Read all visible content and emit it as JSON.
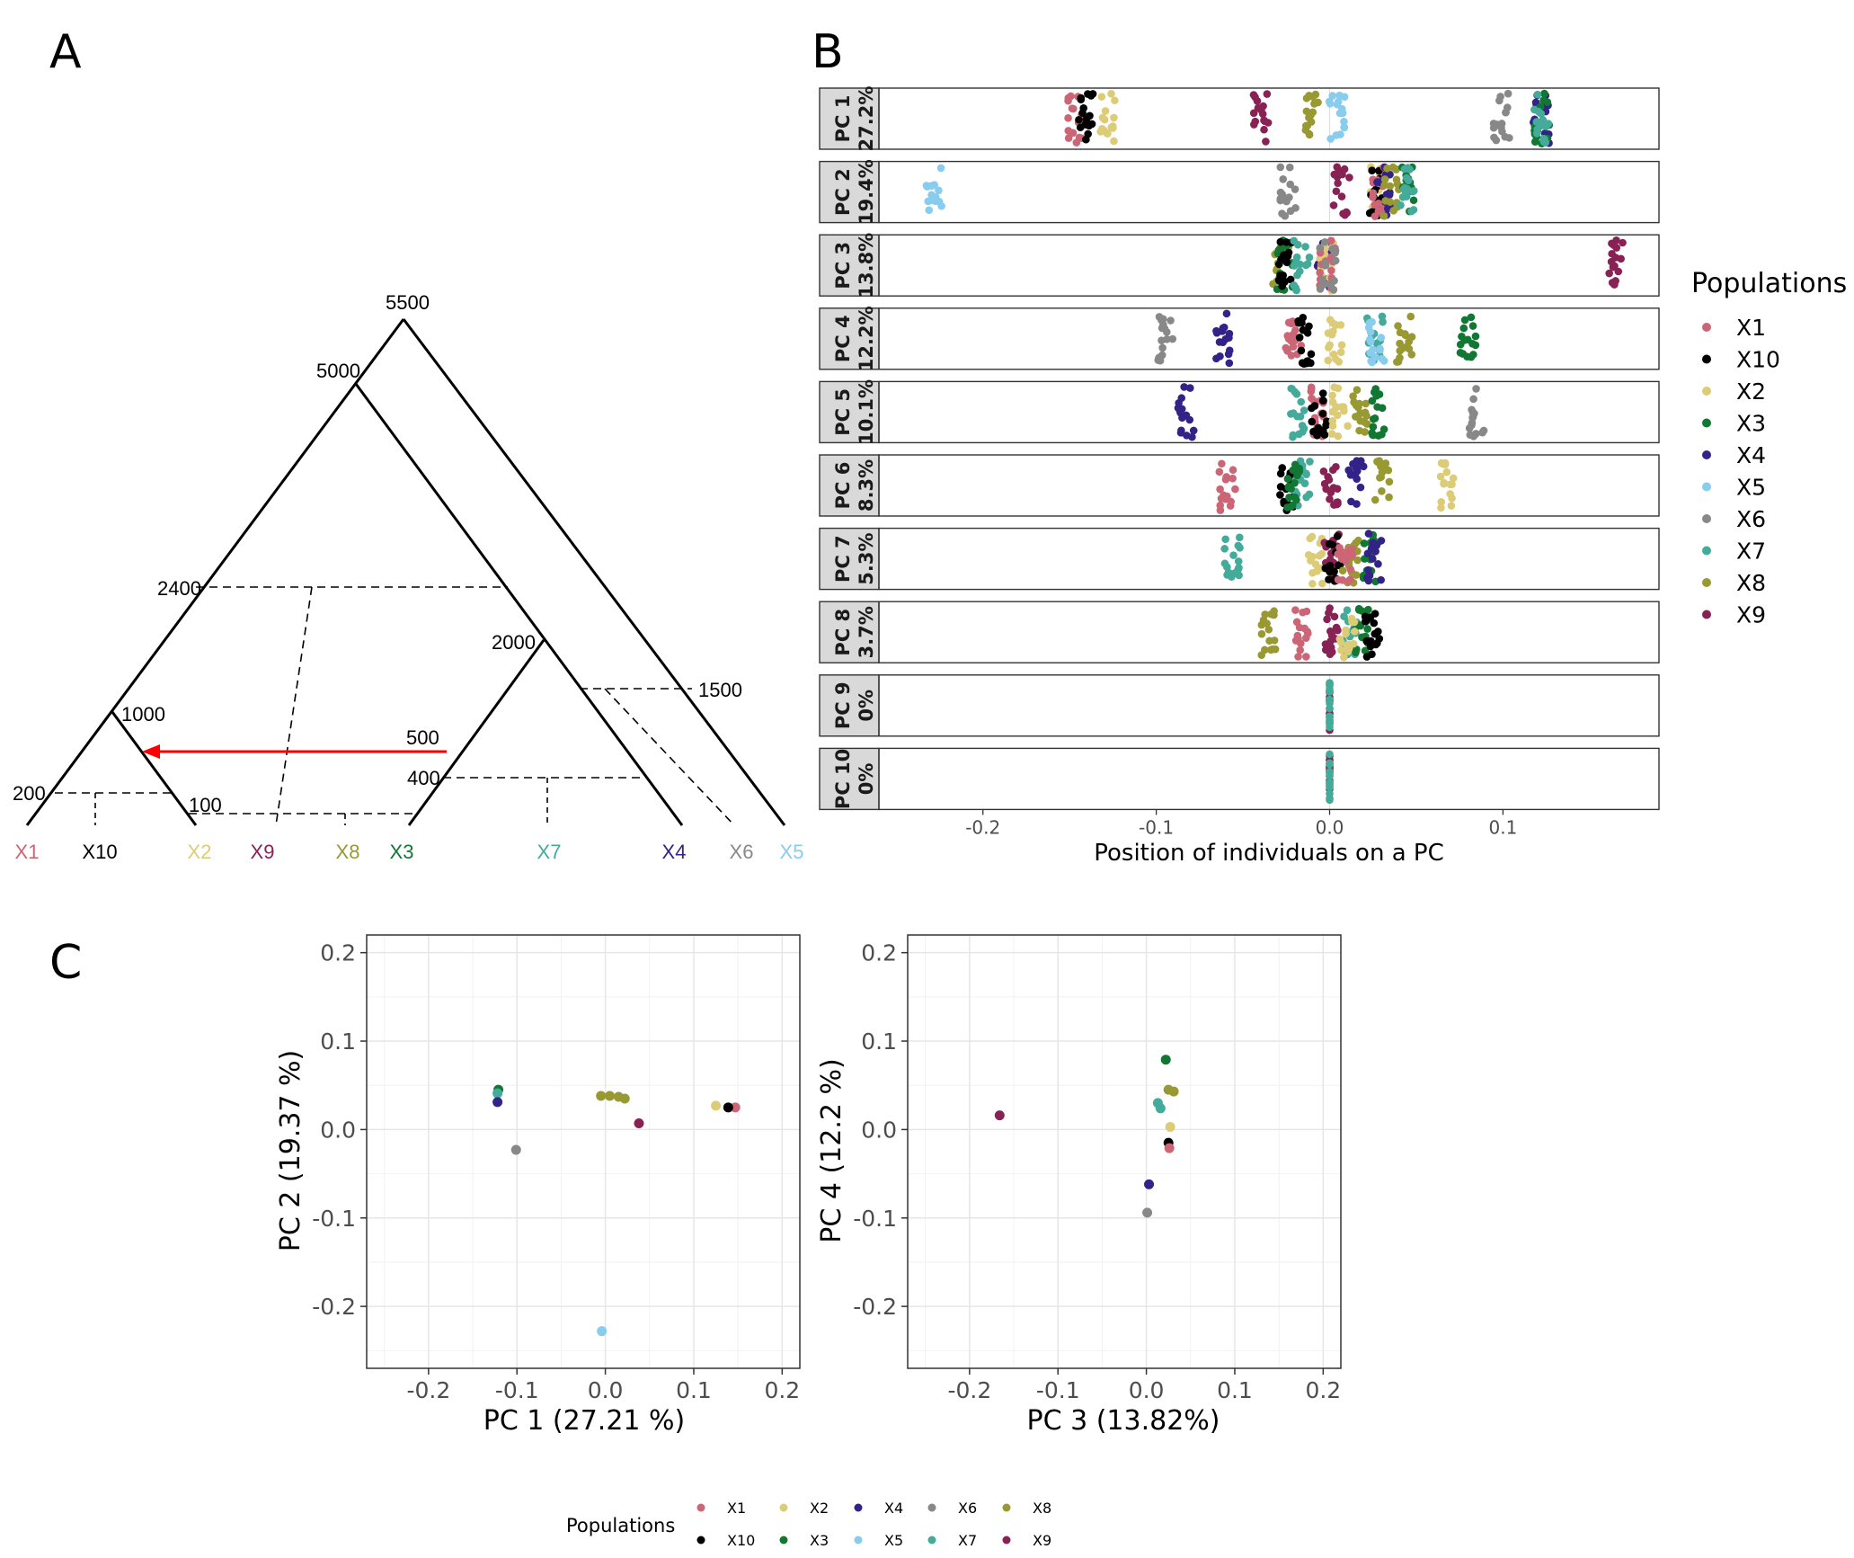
{
  "panels": {
    "a": "A",
    "b": "B",
    "c": "C"
  },
  "colors": {
    "X1": "#CC6677",
    "X10": "#000000",
    "X2": "#DDCC77",
    "X3": "#117733",
    "X4": "#332288",
    "X5": "#88CCEE",
    "X6": "#888888",
    "X7": "#44AA99",
    "X8": "#999933",
    "X9": "#882255"
  },
  "tree": {
    "node_labels": [
      "5500",
      "5000",
      "2400",
      "2000",
      "1500",
      "1000",
      "200",
      "100",
      "400"
    ],
    "migration_label": "500",
    "tips": [
      "X1",
      "X10",
      "X2",
      "X9",
      "X8",
      "X3",
      "X7",
      "X4",
      "X6",
      "X5"
    ]
  },
  "chart_data": [
    {
      "type": "scatter",
      "panel": "B",
      "xlabel": "Position of individuals on a PC",
      "xlim": [
        -0.26,
        0.19
      ],
      "xticks": [
        "-0.2",
        "-0.1",
        "0.0",
        "0.1"
      ],
      "xtick_values": [
        -0.2,
        -0.1,
        0.0,
        0.1
      ],
      "legend_title": "Populations",
      "legend_position": "right",
      "legend_items": [
        "X1",
        "X10",
        "X2",
        "X3",
        "X4",
        "X5",
        "X6",
        "X7",
        "X8",
        "X9"
      ],
      "facets": [
        {
          "line1": "PC 1",
          "line2": "27.2%",
          "pops": {
            "X1": [
              -0.147
            ],
            "X10": [
              -0.141
            ],
            "X2": [
              -0.128
            ],
            "X9": [
              -0.04
            ],
            "X8": [
              -0.01
            ],
            "X5": [
              0.004
            ],
            "X6": [
              0.099
            ],
            "X4": [
              0.122
            ],
            "X3": [
              0.122
            ],
            "X7": [
              0.122
            ]
          }
        },
        {
          "line1": "PC 2",
          "line2": "19.4%",
          "pops": {
            "X5": [
              -0.228
            ],
            "X6": [
              -0.024
            ],
            "X9": [
              0.007
            ],
            "X2": [
              0.028
            ],
            "X10": [
              0.027
            ],
            "X1": [
              0.029
            ],
            "X4": [
              0.031
            ],
            "X8": [
              0.036
            ],
            "X3": [
              0.044
            ],
            "X7": [
              0.044
            ]
          }
        },
        {
          "line1": "PC 3",
          "line2": "13.8%",
          "pops": {
            "X8": [
              -0.028
            ],
            "X3": [
              -0.026
            ],
            "X10": [
              -0.025
            ],
            "X7": [
              -0.016
            ],
            "X4": [
              -0.003
            ],
            "X2": [
              -0.002
            ],
            "X1": [
              -0.001
            ],
            "X6": [
              -0.001
            ],
            "X9": [
              0.165
            ]
          }
        },
        {
          "line1": "PC 4",
          "line2": "12.2%",
          "pops": {
            "X6": [
              -0.095
            ],
            "X4": [
              -0.062
            ],
            "X1": [
              -0.021
            ],
            "X10": [
              -0.015
            ],
            "X2": [
              0.003
            ],
            "X7": [
              0.026
            ],
            "X5": [
              0.027
            ],
            "X8": [
              0.043
            ],
            "X3": [
              0.08
            ]
          }
        },
        {
          "line1": "PC 5",
          "line2": "10.1%",
          "pops": {
            "X4": [
              -0.083
            ],
            "X7": [
              -0.018
            ],
            "X1": [
              -0.008
            ],
            "X10": [
              -0.006
            ],
            "X2": [
              0.006
            ],
            "X8": [
              0.017
            ],
            "X3": [
              0.027
            ],
            "X6": [
              0.085
            ]
          }
        },
        {
          "line1": "PC 6",
          "line2": "8.3%",
          "pops": {
            "X1": [
              -0.059
            ],
            "X10": [
              -0.025
            ],
            "X7": [
              -0.016
            ],
            "X3": [
              -0.02
            ],
            "X9": [
              0.001
            ],
            "X4": [
              0.015
            ],
            "X8": [
              0.03
            ],
            "X2": [
              0.068
            ]
          }
        },
        {
          "line1": "PC 7",
          "line2": "5.3%",
          "pops": {
            "X7": [
              -0.056
            ],
            "X2": [
              -0.008
            ],
            "X9": [
              0.001
            ],
            "X10": [
              0.002
            ],
            "X8": [
              0.012
            ],
            "X1": [
              0.009
            ],
            "X3": [
              0.024
            ],
            "X4": [
              0.026
            ]
          }
        },
        {
          "line1": "PC 8",
          "line2": "3.7%",
          "pops": {
            "X8": [
              -0.035
            ],
            "X1": [
              -0.016
            ],
            "X9": [
              0.001
            ],
            "X7": [
              0.012
            ],
            "X3": [
              0.018
            ],
            "X2": [
              0.01
            ],
            "X10": [
              0.025
            ]
          }
        },
        {
          "line1": "PC 9",
          "line2": "0%",
          "pops": {
            "X9": [
              0.0
            ],
            "X7": [
              0.0
            ]
          }
        },
        {
          "line1": "PC 10",
          "line2": "0%",
          "pops": {
            "X9": [
              0.0
            ],
            "X7": [
              0.0
            ]
          }
        }
      ]
    },
    {
      "type": "scatter",
      "panel": "C-left",
      "xlabel": "PC 1 (27.21 %)",
      "ylabel": "PC 2 (19.37 %)",
      "xlim": [
        -0.27,
        0.22
      ],
      "ylim": [
        -0.27,
        0.22
      ],
      "xticks": [
        "-0.2",
        "-0.1",
        "0.0",
        "0.1",
        "0.2"
      ],
      "yticks": [
        "-0.2",
        "-0.1",
        "0.0",
        "0.1",
        "0.2"
      ],
      "tick_values": [
        -0.2,
        -0.1,
        0.0,
        0.1,
        0.2
      ],
      "points": [
        {
          "pop": "X3",
          "x": -0.121,
          "y": 0.045
        },
        {
          "pop": "X7",
          "x": -0.122,
          "y": 0.041
        },
        {
          "pop": "X4",
          "x": -0.122,
          "y": 0.031
        },
        {
          "pop": "X6",
          "x": -0.101,
          "y": -0.023
        },
        {
          "pop": "X8",
          "x": -0.005,
          "y": 0.038
        },
        {
          "pop": "X8",
          "x": 0.005,
          "y": 0.038
        },
        {
          "pop": "X8",
          "x": 0.015,
          "y": 0.037
        },
        {
          "pop": "X8",
          "x": 0.022,
          "y": 0.035
        },
        {
          "pop": "X9",
          "x": 0.038,
          "y": 0.007
        },
        {
          "pop": "X5",
          "x": -0.004,
          "y": -0.228
        },
        {
          "pop": "X2",
          "x": 0.125,
          "y": 0.027
        },
        {
          "pop": "X1",
          "x": 0.147,
          "y": 0.025
        },
        {
          "pop": "X10",
          "x": 0.139,
          "y": 0.025
        }
      ]
    },
    {
      "type": "scatter",
      "panel": "C-right",
      "xlabel": "PC 3 (13.82%)",
      "ylabel": "PC 4 (12.2 %)",
      "xlim": [
        -0.27,
        0.22
      ],
      "ylim": [
        -0.27,
        0.22
      ],
      "xticks": [
        "-0.2",
        "-0.1",
        "0.0",
        "0.1",
        "0.2"
      ],
      "yticks": [
        "-0.2",
        "-0.1",
        "0.0",
        "0.1",
        "0.2"
      ],
      "tick_values": [
        -0.2,
        -0.1,
        0.0,
        0.1,
        0.2
      ],
      "points": [
        {
          "pop": "X9",
          "x": -0.166,
          "y": 0.016
        },
        {
          "pop": "X3",
          "x": 0.022,
          "y": 0.079
        },
        {
          "pop": "X8",
          "x": 0.025,
          "y": 0.045
        },
        {
          "pop": "X8",
          "x": 0.031,
          "y": 0.043
        },
        {
          "pop": "X7",
          "x": 0.013,
          "y": 0.03
        },
        {
          "pop": "X7",
          "x": 0.016,
          "y": 0.024
        },
        {
          "pop": "X2",
          "x": 0.027,
          "y": 0.003
        },
        {
          "pop": "X10",
          "x": 0.025,
          "y": -0.015
        },
        {
          "pop": "X1",
          "x": 0.026,
          "y": -0.021
        },
        {
          "pop": "X4",
          "x": 0.003,
          "y": -0.062
        },
        {
          "pop": "X6",
          "x": 0.001,
          "y": -0.094
        }
      ]
    }
  ],
  "bottom_legend": {
    "title": "Populations",
    "row1": [
      "X1",
      "X2",
      "X4",
      "X6",
      "X8"
    ],
    "row2": [
      "X10",
      "X3",
      "X5",
      "X7",
      "X9"
    ]
  }
}
